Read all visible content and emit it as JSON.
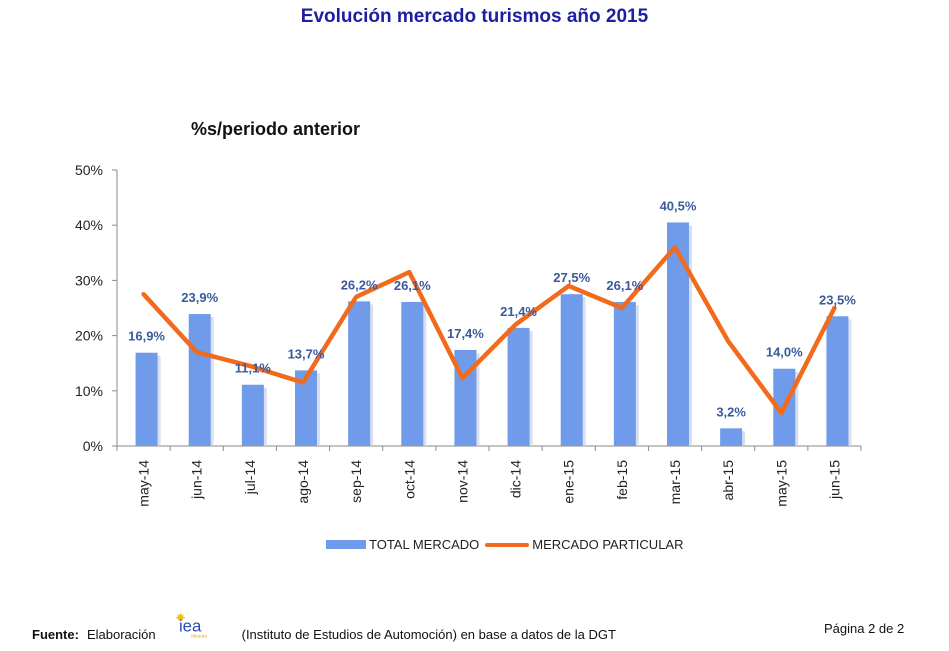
{
  "page_title": "Evolución mercado turismos año 2015",
  "chart_data": {
    "type": "bar",
    "title": "%s/periodo anterior",
    "categories": [
      "may-14",
      "jun-14",
      "jul-14",
      "ago-14",
      "sep-14",
      "oct-14",
      "nov-14",
      "dic-14",
      "ene-15",
      "feb-15",
      "mar-15",
      "abr-15",
      "may-15",
      "jun-15"
    ],
    "ylim": [
      0,
      50
    ],
    "yticks": [
      0,
      10,
      20,
      30,
      40,
      50
    ],
    "ytick_labels": [
      "0%",
      "10%",
      "20%",
      "30%",
      "40%",
      "50%"
    ],
    "series": [
      {
        "name": "TOTAL MERCADO",
        "kind": "bar",
        "color": "#6f9bea",
        "values": [
          16.9,
          23.9,
          11.1,
          13.7,
          26.2,
          26.1,
          17.4,
          21.4,
          27.5,
          26.1,
          40.5,
          3.2,
          14.0,
          23.5
        ],
        "data_labels": [
          "16,9%",
          "23,9%",
          "11,1%",
          "13,7%",
          "26,2%",
          "26,1%",
          "17,4%",
          "21,4%",
          "27,5%",
          "26,1%",
          "40,5%",
          "3,2%",
          "14,0%",
          "23,5%"
        ]
      },
      {
        "name": "MERCADO PARTICULAR",
        "kind": "line",
        "color": "#f26b1d",
        "values": [
          27.5,
          17.0,
          14.5,
          11.5,
          27.0,
          31.5,
          12.3,
          22.0,
          29.0,
          25.0,
          36.0,
          19.0,
          6.0,
          25.0
        ]
      }
    ],
    "label_color": "#3a5a9c"
  },
  "legend": {
    "bar_label": "TOTAL MERCADO",
    "line_label": "MERCADO PARTICULAR"
  },
  "footer": {
    "source_label": "Fuente:",
    "prefix": "Elaboración",
    "logo_text": "iea",
    "logo_subtext": "ideauto",
    "description": "(Instituto de Estudios de Automoción) en base a datos de la DGT",
    "page": "Página 2 de 2"
  }
}
